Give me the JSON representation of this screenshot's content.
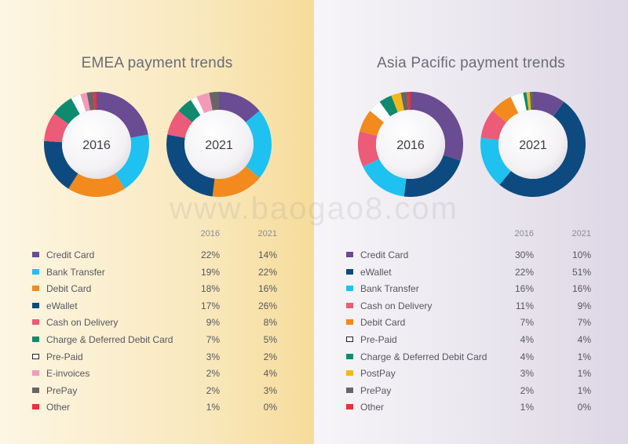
{
  "watermark": "www.baogao8.com",
  "chart_data": [
    {
      "type": "pie",
      "title": "EMEA payment trends",
      "columns": [
        "2016",
        "2021"
      ],
      "categories": [
        "Credit Card",
        "Bank Transfer",
        "Debit Card",
        "eWallet",
        "Cash on Delivery",
        "Charge & Deferred Debit Card",
        "Pre-Paid",
        "E-invoices",
        "PrePay",
        "Other"
      ],
      "colors": [
        "#6a4c93",
        "#1ec1f0",
        "#f28a1d",
        "#0d4a80",
        "#ec5b78",
        "#0e8a6e",
        "#ffffff",
        "#f49ab8",
        "#666666",
        "#e8323c"
      ],
      "outline": [
        false,
        false,
        false,
        false,
        false,
        false,
        true,
        false,
        false,
        false
      ],
      "values_text": [
        [
          "22%",
          "14%"
        ],
        [
          "19%",
          "22%"
        ],
        [
          "18%",
          "16%"
        ],
        [
          "17%",
          "26%"
        ],
        [
          "9%",
          "8%"
        ],
        [
          "7%",
          "5%"
        ],
        [
          "3%",
          "2%"
        ],
        [
          "2%",
          "4%"
        ],
        [
          "2%",
          "3%"
        ],
        [
          "1%",
          "0%"
        ]
      ],
      "series": [
        {
          "name": "2016",
          "values": [
            22,
            19,
            18,
            17,
            9,
            7,
            3,
            2,
            2,
            1
          ]
        },
        {
          "name": "2021",
          "values": [
            14,
            22,
            16,
            26,
            8,
            5,
            2,
            4,
            3,
            0
          ]
        }
      ]
    },
    {
      "type": "pie",
      "title": "Asia Pacific payment trends",
      "columns": [
        "2016",
        "2021"
      ],
      "categories": [
        "Credit Card",
        "eWallet",
        "Bank Transfer",
        "Cash on Delivery",
        "Debit Card",
        "Pre-Paid",
        "Charge & Deferred Debit Card",
        "PostPay",
        "PrePay",
        "Other"
      ],
      "colors": [
        "#6a4c93",
        "#0d4a80",
        "#1ec1f0",
        "#ec5b78",
        "#f28a1d",
        "#ffffff",
        "#0e8a6e",
        "#f5b81a",
        "#666666",
        "#e8323c"
      ],
      "outline": [
        false,
        false,
        false,
        false,
        false,
        true,
        false,
        false,
        false,
        false
      ],
      "values_text": [
        [
          "30%",
          "10%"
        ],
        [
          "22%",
          "51%"
        ],
        [
          "16%",
          "16%"
        ],
        [
          "11%",
          "9%"
        ],
        [
          "7%",
          "7%"
        ],
        [
          "4%",
          "4%"
        ],
        [
          "4%",
          "1%"
        ],
        [
          "3%",
          "1%"
        ],
        [
          "2%",
          "1%"
        ],
        [
          "1%",
          "0%"
        ]
      ],
      "series": [
        {
          "name": "2016",
          "values": [
            30,
            22,
            16,
            11,
            7,
            4,
            4,
            3,
            2,
            1
          ]
        },
        {
          "name": "2021",
          "values": [
            10,
            51,
            16,
            9,
            7,
            4,
            1,
            1,
            1,
            0
          ]
        }
      ]
    }
  ]
}
